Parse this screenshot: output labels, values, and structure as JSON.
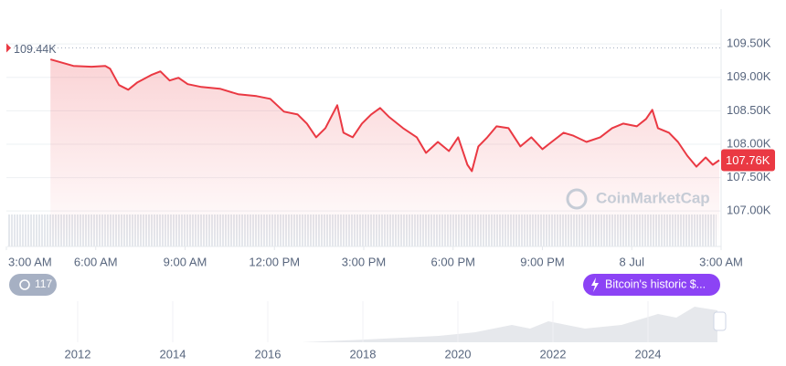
{
  "chart_data": {
    "type": "line",
    "x": [
      1.48,
      2.25,
      2.86,
      3.32,
      3.48,
      3.78,
      4.09,
      4.4,
      4.86,
      5.17,
      5.48,
      5.78,
      6.09,
      6.55,
      7.17,
      7.78,
      8.4,
      8.86,
      9.32,
      9.78,
      10.09,
      10.4,
      10.71,
      11.11,
      11.32,
      11.63,
      11.94,
      12.25,
      12.55,
      12.86,
      13.32,
      13.78,
      14.09,
      14.49,
      14.86,
      15.17,
      15.48,
      15.63,
      15.85,
      16.15,
      16.46,
      16.86,
      17.26,
      17.63,
      18.0,
      18.31,
      18.71,
      19.02,
      19.48,
      19.94,
      20.34,
      20.71,
      21.17,
      21.48,
      21.69,
      21.88,
      22.25,
      22.55,
      22.86,
      23.17,
      23.48,
      23.72,
      23.94
    ],
    "series": [
      {
        "color": "#ea3943",
        "values": [
          109267,
          109171,
          109158,
          109171,
          109130,
          108884,
          108815,
          108925,
          109034,
          109089,
          108952,
          108993,
          108897,
          108856,
          108829,
          108747,
          108719,
          108678,
          108486,
          108445,
          108308,
          108103,
          108240,
          108582,
          108171,
          108103,
          108308,
          108445,
          108541,
          108404,
          108240,
          108103,
          107870,
          108034,
          107897,
          108103,
          107692,
          107596,
          107966,
          108103,
          108267,
          108240,
          107966,
          108103,
          107925,
          108034,
          108171,
          108130,
          108034,
          108103,
          108240,
          108308,
          108267,
          108377,
          108514,
          108240,
          108171,
          108034,
          107829,
          107664,
          107801,
          107692,
          107760
        ]
      }
    ],
    "xlim": [
      0,
      24
    ],
    "xticks": [
      {
        "value": 0,
        "label": "3:00 AM"
      },
      {
        "value": 3,
        "label": "6:00 AM"
      },
      {
        "value": 6,
        "label": "9:00 AM"
      },
      {
        "value": 9,
        "label": "12:00 PM"
      },
      {
        "value": 12,
        "label": "3:00 PM"
      },
      {
        "value": 15,
        "label": "6:00 PM"
      },
      {
        "value": 18,
        "label": "9:00 PM"
      },
      {
        "value": 21,
        "label": "8 Jul"
      },
      {
        "value": 24,
        "label": "3:00 AM"
      }
    ],
    "ylim": [
      106470,
      110020
    ],
    "yticks": [
      {
        "value": 107000,
        "label": "107.00K"
      },
      {
        "value": 107500,
        "label": "107.50K"
      },
      {
        "value": 108000,
        "label": "108.00K"
      },
      {
        "value": 108500,
        "label": "108.50K"
      },
      {
        "value": 109000,
        "label": "109.00K"
      },
      {
        "value": 109500,
        "label": "109.50K"
      }
    ],
    "reference": {
      "value": 109440,
      "label": "109.44K"
    },
    "current": {
      "value": 107760,
      "label": "107.76K"
    },
    "grid": true,
    "watermark": "CoinMarketCap"
  },
  "badge_count": "117",
  "news_button": "Bitcoin's historic $...",
  "navigator": {
    "years": [
      "2012",
      "2014",
      "2016",
      "2018",
      "2020",
      "2022",
      "2024"
    ]
  }
}
